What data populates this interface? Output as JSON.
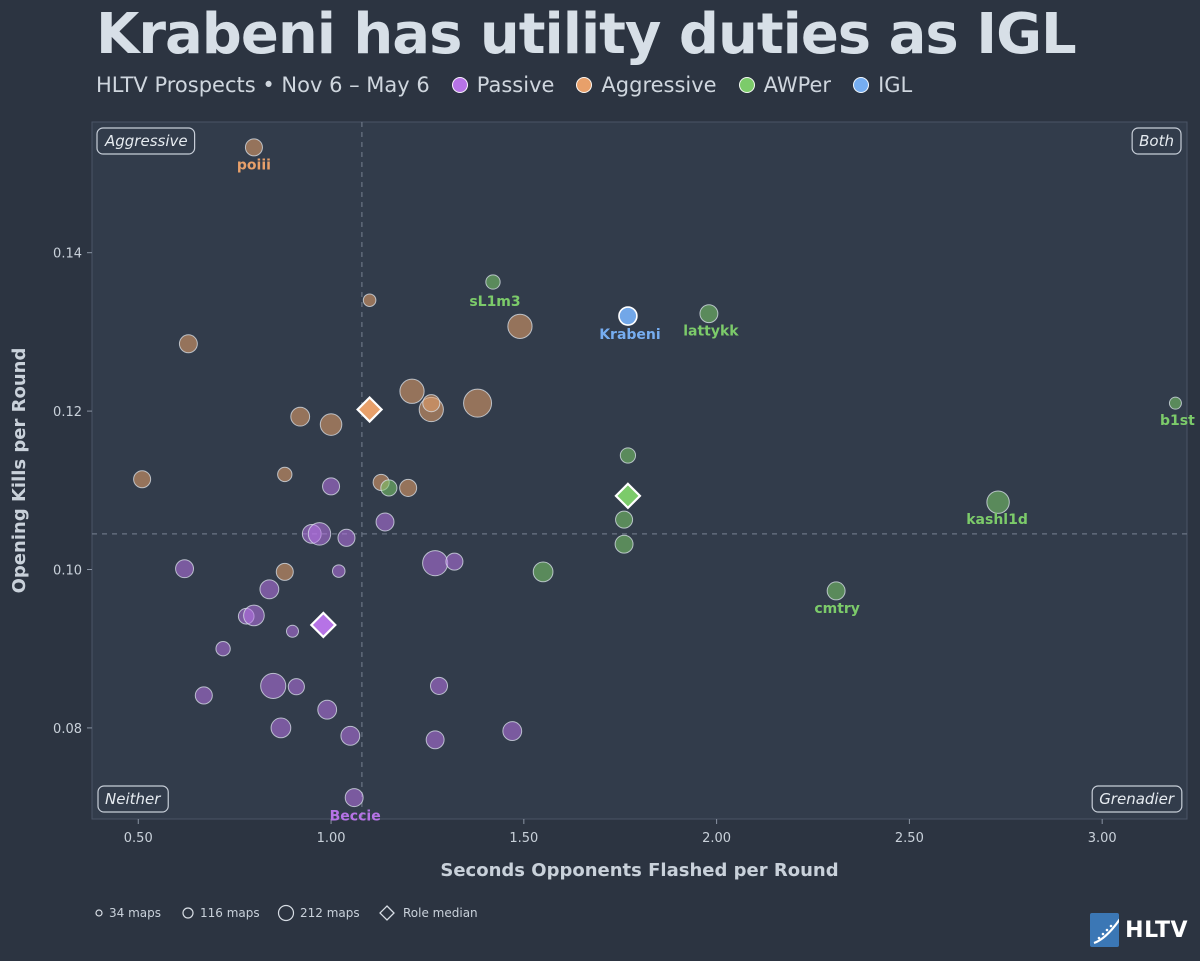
{
  "header": {
    "title": "Krabeni has utility duties as IGL",
    "subtitle": "HLTV Prospects • Nov 6 – May 6"
  },
  "legend": [
    {
      "label": "Passive",
      "color": "#b673e6"
    },
    {
      "label": "Aggressive",
      "color": "#e8a06a"
    },
    {
      "label": "AWPer",
      "color": "#7ccb6a"
    },
    {
      "label": "IGL",
      "color": "#76adf0"
    }
  ],
  "size_legend": [
    {
      "label": "34 maps",
      "maps": 34
    },
    {
      "label": "116 maps",
      "maps": 116
    },
    {
      "label": "212 maps",
      "maps": 212
    },
    {
      "label": "Role median",
      "marker": "diamond"
    }
  ],
  "corners": {
    "top_left": "Aggressive",
    "top_right": "Both",
    "bottom_left": "Neither",
    "bottom_right": "Grenadier"
  },
  "logo": {
    "text": "HLTV"
  },
  "chart_data": {
    "type": "scatter",
    "xlabel": "Seconds Opponents Flashed per Round",
    "ylabel": "Opening Kills per Round",
    "xlim": [
      0.38,
      3.22
    ],
    "ylim": [
      0.0685,
      0.1565
    ],
    "xticks": [
      0.5,
      1.0,
      1.5,
      2.0,
      2.5,
      3.0
    ],
    "xtick_labels": [
      "0.50",
      "1.00",
      "1.50",
      "2.00",
      "2.50",
      "3.00"
    ],
    "yticks": [
      0.08,
      0.1,
      0.12,
      0.14
    ],
    "ytick_labels": [
      "0.08",
      "0.10",
      "0.12",
      "0.14"
    ],
    "reference_lines": {
      "x": 1.08,
      "y": 0.1045
    },
    "colors": {
      "Passive": "#b673e6",
      "Aggressive": "#e8a06a",
      "AWPer": "#7ccb6a",
      "IGL": "#76adf0"
    },
    "series": [
      {
        "name": "Passive",
        "points": [
          {
            "x": 0.62,
            "y": 0.1001,
            "maps": 100
          },
          {
            "x": 0.67,
            "y": 0.0841,
            "maps": 90
          },
          {
            "x": 0.72,
            "y": 0.09,
            "maps": 60
          },
          {
            "x": 0.78,
            "y": 0.0941,
            "maps": 75
          },
          {
            "x": 0.8,
            "y": 0.0942,
            "maps": 130
          },
          {
            "x": 0.84,
            "y": 0.0975,
            "maps": 110
          },
          {
            "x": 0.85,
            "y": 0.0853,
            "maps": 180
          },
          {
            "x": 0.87,
            "y": 0.08,
            "maps": 120
          },
          {
            "x": 0.9,
            "y": 0.0922,
            "maps": 34
          },
          {
            "x": 0.91,
            "y": 0.0852,
            "maps": 80
          },
          {
            "x": 0.95,
            "y": 0.1045,
            "maps": 110
          },
          {
            "x": 0.97,
            "y": 0.1045,
            "maps": 150
          },
          {
            "x": 0.99,
            "y": 0.0823,
            "maps": 110
          },
          {
            "x": 1.0,
            "y": 0.1105,
            "maps": 90
          },
          {
            "x": 1.02,
            "y": 0.0998,
            "maps": 40
          },
          {
            "x": 1.04,
            "y": 0.104,
            "maps": 90
          },
          {
            "x": 1.05,
            "y": 0.079,
            "maps": 110
          },
          {
            "x": 1.06,
            "y": 0.0712,
            "maps": 100,
            "label": "Beccie"
          },
          {
            "x": 1.14,
            "y": 0.106,
            "maps": 100
          },
          {
            "x": 1.27,
            "y": 0.1008,
            "maps": 180
          },
          {
            "x": 1.27,
            "y": 0.0785,
            "maps": 100
          },
          {
            "x": 1.28,
            "y": 0.0853,
            "maps": 90
          },
          {
            "x": 1.32,
            "y": 0.101,
            "maps": 90
          },
          {
            "x": 1.47,
            "y": 0.0796,
            "maps": 110
          }
        ]
      },
      {
        "name": "Aggressive",
        "points": [
          {
            "x": 0.51,
            "y": 0.1114,
            "maps": 90
          },
          {
            "x": 0.63,
            "y": 0.1285,
            "maps": 100
          },
          {
            "x": 0.8,
            "y": 0.1533,
            "maps": 90,
            "label": "poiii"
          },
          {
            "x": 0.88,
            "y": 0.112,
            "maps": 60
          },
          {
            "x": 0.88,
            "y": 0.0997,
            "maps": 90
          },
          {
            "x": 0.92,
            "y": 0.1193,
            "maps": 110
          },
          {
            "x": 1.0,
            "y": 0.1183,
            "maps": 140
          },
          {
            "x": 1.1,
            "y": 0.134,
            "maps": 40
          },
          {
            "x": 1.13,
            "y": 0.111,
            "maps": 80
          },
          {
            "x": 1.2,
            "y": 0.1103,
            "maps": 90
          },
          {
            "x": 1.21,
            "y": 0.1225,
            "maps": 170
          },
          {
            "x": 1.26,
            "y": 0.1202,
            "maps": 170
          },
          {
            "x": 1.26,
            "y": 0.121,
            "maps": 90
          },
          {
            "x": 1.38,
            "y": 0.121,
            "maps": 212
          },
          {
            "x": 1.49,
            "y": 0.1307,
            "maps": 170
          }
        ]
      },
      {
        "name": "AWPer",
        "points": [
          {
            "x": 1.15,
            "y": 0.1103,
            "maps": 80
          },
          {
            "x": 1.42,
            "y": 0.1363,
            "maps": 60,
            "label": "sL1m3"
          },
          {
            "x": 1.55,
            "y": 0.0997,
            "maps": 120
          },
          {
            "x": 1.76,
            "y": 0.1032,
            "maps": 100
          },
          {
            "x": 1.76,
            "y": 0.1063,
            "maps": 90
          },
          {
            "x": 1.77,
            "y": 0.1144,
            "maps": 70
          },
          {
            "x": 1.98,
            "y": 0.1323,
            "maps": 100,
            "label": "lattykk"
          },
          {
            "x": 2.31,
            "y": 0.0973,
            "maps": 100,
            "label": "cmtry"
          },
          {
            "x": 2.73,
            "y": 0.1085,
            "maps": 150,
            "label": "kashl1d"
          },
          {
            "x": 3.19,
            "y": 0.121,
            "maps": 34,
            "label": "b1st"
          }
        ]
      },
      {
        "name": "IGL",
        "points": [
          {
            "x": 1.77,
            "y": 0.132,
            "maps": 100,
            "label": "Krabeni"
          }
        ]
      }
    ],
    "role_medians": [
      {
        "role": "Passive",
        "x": 0.98,
        "y": 0.093
      },
      {
        "role": "Aggressive",
        "x": 1.1,
        "y": 0.1202
      },
      {
        "role": "AWPer",
        "x": 1.77,
        "y": 0.1093
      }
    ]
  }
}
